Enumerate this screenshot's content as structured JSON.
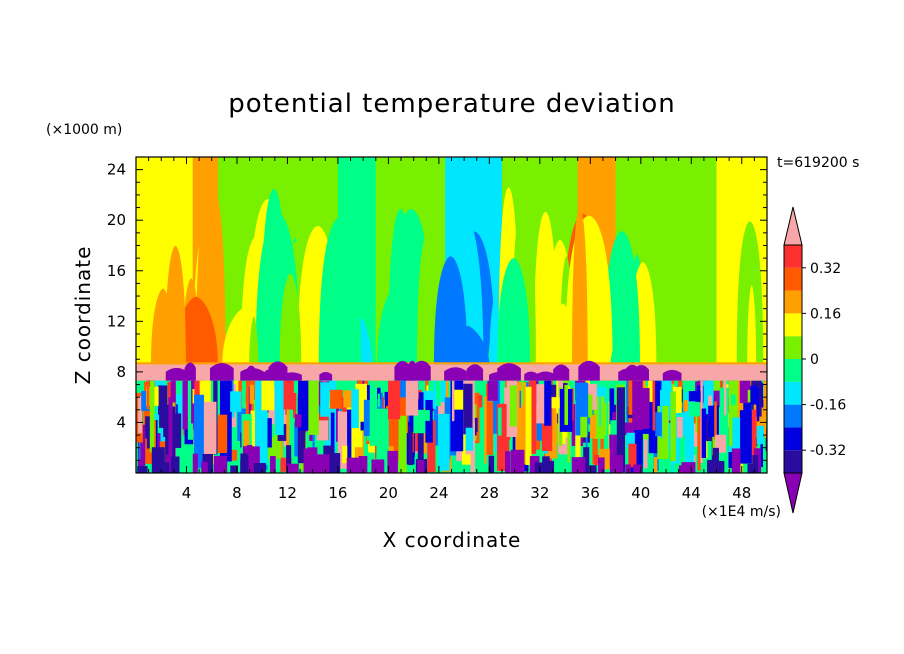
{
  "chart_data": {
    "type": "heatmap",
    "title": "potential temperature deviation",
    "time_label": "t=619200 s",
    "xlabel": "X coordinate",
    "ylabel": "Z coordinate",
    "x_unit": "(×1E4 m/s)",
    "y_unit": "(×1000 m)",
    "xlim": [
      0,
      50
    ],
    "ylim": [
      0,
      25
    ],
    "x_ticks": [
      4,
      8,
      12,
      16,
      20,
      24,
      28,
      32,
      36,
      40,
      44,
      48
    ],
    "y_ticks": [
      4,
      8,
      12,
      16,
      20,
      24
    ],
    "grid": false,
    "colorbar": {
      "placement": "right",
      "levels": [
        -0.4,
        -0.32,
        -0.24,
        -0.16,
        -0.08,
        0,
        0.08,
        0.16,
        0.24,
        0.32,
        0.4
      ],
      "labels": [
        "-0.32",
        "-0.16",
        "0",
        "0.16",
        "0.32"
      ],
      "label_values": [
        -0.32,
        -0.16,
        0,
        0.16,
        0.32
      ],
      "colors": [
        "#8a00b4",
        "#2a0c9e",
        "#0000e0",
        "#0078ff",
        "#00e6ff",
        "#00ff86",
        "#78f000",
        "#ffff00",
        "#ffa000",
        "#ff5a00",
        "#ff3030",
        "#f7a7a7"
      ],
      "extend": "both"
    },
    "fields": {
      "upper_band_cycle": [
        "#ffff00",
        "#78f000",
        "#00ff86",
        "#00e6ff",
        "#00ff86",
        "#78f000"
      ],
      "upper_band_columns": [
        {
          "x_from": 0,
          "x_to": 4.5,
          "value": 0.12
        },
        {
          "x_from": 4.5,
          "x_to": 6.5,
          "value": 0.16
        },
        {
          "x_from": 6.5,
          "x_to": 16,
          "value": 0.02
        },
        {
          "x_from": 16,
          "x_to": 19,
          "value": -0.08
        },
        {
          "x_from": 19,
          "x_to": 24.5,
          "value": 0.02
        },
        {
          "x_from": 24.5,
          "x_to": 29,
          "value": -0.1
        },
        {
          "x_from": 29,
          "x_to": 35,
          "value": 0.06
        },
        {
          "x_from": 35,
          "x_to": 38,
          "value": 0.16
        },
        {
          "x_from": 38,
          "x_to": 46,
          "value": 0.02
        },
        {
          "x_from": 46,
          "x_to": 50,
          "value": 0.12
        }
      ],
      "inversion_layer": {
        "z_from": 7.3,
        "z_to": 8.6,
        "value": 0.4
      },
      "turbulent_layer": {
        "z_from": 0,
        "z_to": 7.3
      }
    }
  }
}
